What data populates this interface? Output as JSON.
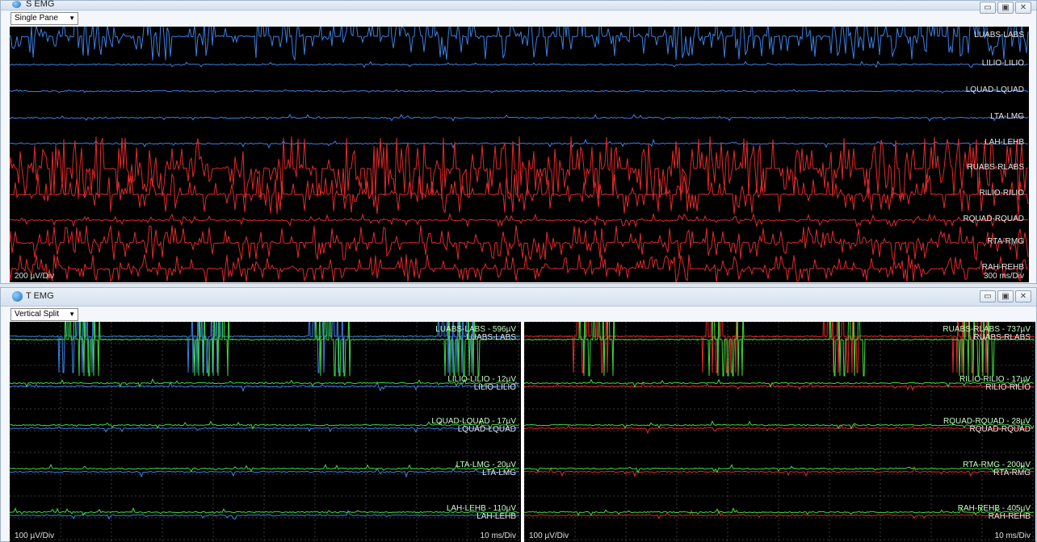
{
  "s_window": {
    "title": "S EMG",
    "pane_mode": "Single Pane",
    "buttons": [
      "▭",
      "▣",
      "✕"
    ],
    "channels": [
      "LUABS-LABS",
      "LILIO-LILIO",
      "LQUAD-LQUAD",
      "LTA-LMG",
      "LAH-LEHB",
      "RUABS-RLABS",
      "RILIO-RILIO",
      "RQUAD-RQUAD",
      "RTA-RMG",
      "RAH-REHB"
    ],
    "amp_scale": "200 µV/Div",
    "time_scale": "300 ms/Div",
    "colors": {
      "left": "#3d7fe0",
      "right": "#e02a2a",
      "background": "#000000"
    }
  },
  "t_window": {
    "title": "T EMG",
    "pane_mode": "Vertical Split",
    "buttons": [
      "▭",
      "▣",
      "✕"
    ],
    "left_channels": [
      {
        "label": "LUABS-LABS",
        "amp": "LUABS-LABS - 596µV"
      },
      {
        "label": "LILIO-LILIO",
        "amp": "LILIO-LILIO - 12µV"
      },
      {
        "label": "LQUAD-LQUAD",
        "amp": "LQUAD-LQUAD - 17µV"
      },
      {
        "label": "LTA-LMG",
        "amp": "LTA-LMG - 20µV"
      },
      {
        "label": "LAH-LEHB",
        "amp": "LAH-LEHB - 110µV"
      }
    ],
    "right_channels": [
      {
        "label": "RUABS-RLABS",
        "amp": "RUABS-RLABS - 737µV"
      },
      {
        "label": "RILIO-RILIO",
        "amp": "RILIO-RILIO - 17µV"
      },
      {
        "label": "RQUAD-RQUAD",
        "amp": "RQUAD-RQUAD - 28µV"
      },
      {
        "label": "RTA-RMG",
        "amp": "RTA-RMG - 200µV"
      },
      {
        "label": "RAH-REHB",
        "amp": "RAH-REHB - 405µV"
      }
    ],
    "left_amp_scale": "100 µV/Div",
    "left_time_scale": "10 ms/Div",
    "right_amp_scale": "100 µV/Div",
    "right_time_scale": "10 ms/Div",
    "colors": {
      "left": "#3d7fe0",
      "right": "#e02a2a",
      "overlay": "#3ddc3d"
    }
  }
}
